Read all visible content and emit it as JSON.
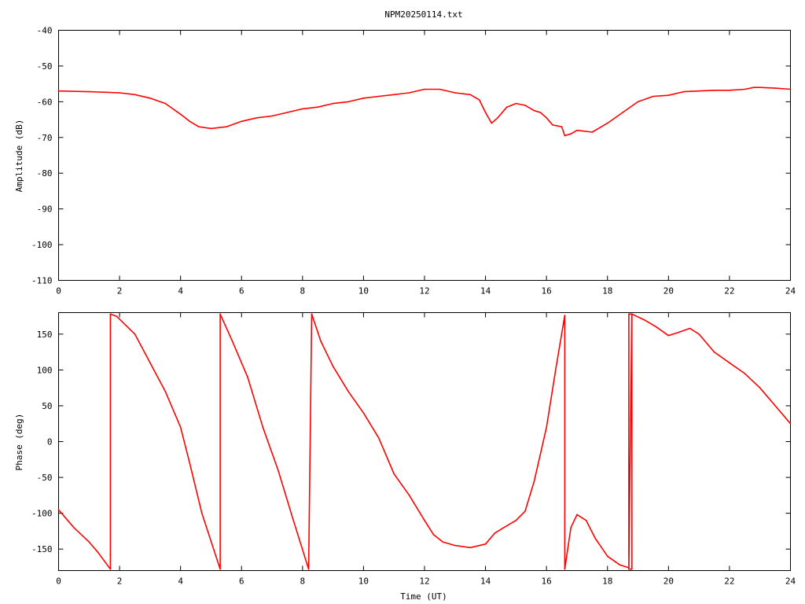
{
  "chart_data": [
    {
      "type": "line",
      "title": "NPM20250114.txt",
      "xlabel": "",
      "ylabel": "Amplitude (dB)",
      "xlim": [
        0,
        24
      ],
      "ylim": [
        -110,
        -40
      ],
      "xticks": [
        "0",
        "2",
        "4",
        "6",
        "8",
        "10",
        "12",
        "14",
        "16",
        "18",
        "20",
        "22",
        "24"
      ],
      "yticks": [
        "-40",
        "-50",
        "-60",
        "-70",
        "-80",
        "-90",
        "-100",
        "-110"
      ],
      "grid": false,
      "series": [
        {
          "color": "#ff0000",
          "x": [
            0,
            1,
            2,
            2.5,
            3,
            3.5,
            4,
            4.3,
            4.6,
            5,
            5.5,
            6,
            6.5,
            7,
            7.5,
            8,
            8.5,
            9,
            9.5,
            10,
            10.5,
            11,
            11.5,
            12,
            12.5,
            13,
            13.5,
            13.8,
            14,
            14.2,
            14.4,
            14.7,
            15,
            15.3,
            15.6,
            15.8,
            16,
            16.2,
            16.5,
            16.6,
            16.8,
            17,
            17.5,
            18,
            18.5,
            19,
            19.5,
            20,
            20.5,
            21,
            21.5,
            22,
            22.5,
            22.8,
            23,
            23.5,
            24
          ],
          "y": [
            -57,
            -57.2,
            -57.5,
            -58,
            -59,
            -60.5,
            -63.5,
            -65.5,
            -67,
            -67.5,
            -67,
            -65.5,
            -64.5,
            -64,
            -63,
            -62,
            -61.5,
            -60.5,
            -60,
            -59,
            -58.5,
            -58,
            -57.5,
            -56.5,
            -56.5,
            -57.5,
            -58,
            -59.5,
            -63,
            -66,
            -64.5,
            -61.5,
            -60.5,
            -61,
            -62.5,
            -63,
            -64.5,
            -66.5,
            -67,
            -69.5,
            -69,
            -68,
            -68.5,
            -66,
            -63,
            -60,
            -58.5,
            -58.2,
            -57.2,
            -57,
            -56.8,
            -56.8,
            -56.5,
            -56,
            -56,
            -56.2,
            -56.5
          ]
        }
      ]
    },
    {
      "type": "line",
      "title": "",
      "xlabel": "Time (UT)",
      "ylabel": "Phase (deg)",
      "xlim": [
        0,
        24
      ],
      "ylim": [
        -180,
        180
      ],
      "xticks": [
        "0",
        "2",
        "4",
        "6",
        "8",
        "10",
        "12",
        "14",
        "16",
        "18",
        "20",
        "22",
        "24"
      ],
      "yticks": [
        "150",
        "100",
        "50",
        "0",
        "-50",
        "-100",
        "-150"
      ],
      "grid": false,
      "series": [
        {
          "color": "#ff0000",
          "x": [
            0,
            0.5,
            1,
            1.3,
            1.7,
            1.7,
            1.9,
            2.5,
            3,
            3.5,
            4,
            4.3,
            4.7,
            5.3,
            5.3,
            5.7,
            6.2,
            6.7,
            7.2,
            7.7,
            8.2,
            8.2,
            8.3,
            8.3,
            8.6,
            9,
            9.5,
            10,
            10.5,
            11,
            11.5,
            12,
            12.3,
            12.6,
            13,
            13.5,
            14,
            14.3,
            14.6,
            15,
            15.3,
            15.6,
            16,
            16.3,
            16.6,
            16.6,
            16.8,
            17,
            17.3,
            17.6,
            18,
            18.4,
            18.7,
            18.7,
            18.8,
            18.8,
            18.7,
            18.8,
            18.8,
            19.2,
            19.6,
            20,
            20.3,
            20.7,
            21,
            21.5,
            22,
            22.5,
            23,
            23.5,
            24
          ],
          "y": [
            -95,
            -120,
            -140,
            -155,
            -178,
            178,
            175,
            150,
            110,
            70,
            20,
            -30,
            -100,
            -178,
            178,
            140,
            90,
            20,
            -40,
            -110,
            -178,
            -178,
            178,
            178,
            140,
            105,
            70,
            40,
            5,
            -45,
            -75,
            -110,
            -130,
            -140,
            -145,
            -148,
            -143,
            -128,
            -120,
            -110,
            -97,
            -55,
            20,
            100,
            176,
            -178,
            -120,
            -102,
            -110,
            -135,
            -160,
            -172,
            -176,
            178,
            178,
            -178,
            -178,
            178,
            178,
            170,
            160,
            148,
            152,
            158,
            150,
            125,
            110,
            95,
            75,
            50,
            25
          ]
        }
      ]
    }
  ]
}
